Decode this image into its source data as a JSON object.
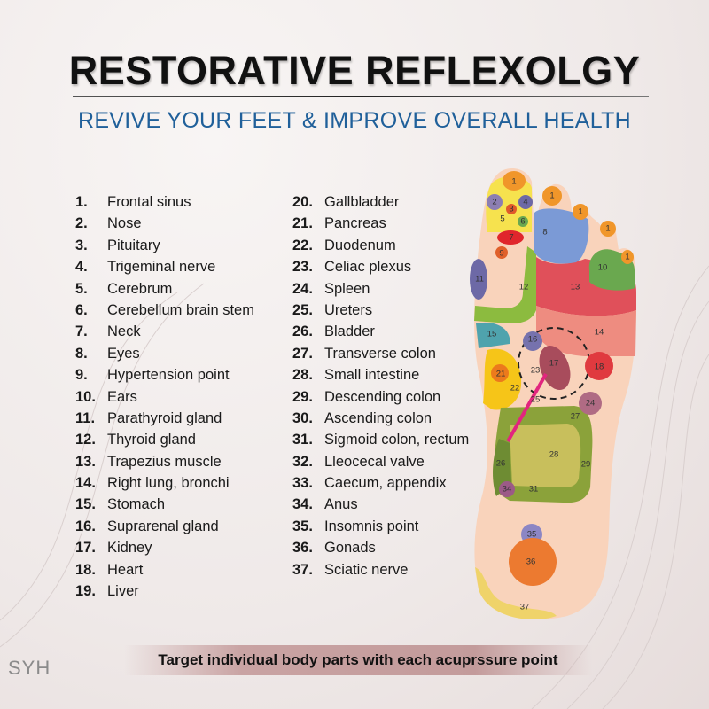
{
  "header": {
    "title": "RESTORATIVE REFLEXOLGY",
    "subtitle": "REVIVE YOUR FEET & IMPROVE OVERALL HEALTH"
  },
  "legend_left": [
    {
      "num": "1.",
      "label": "Frontal sinus"
    },
    {
      "num": "2.",
      "label": "Nose"
    },
    {
      "num": "3.",
      "label": "Pituitary"
    },
    {
      "num": "4.",
      "label": "Trigeminal nerve"
    },
    {
      "num": "5.",
      "label": "Cerebrum"
    },
    {
      "num": "6.",
      "label": "Cerebellum brain stem"
    },
    {
      "num": "7.",
      "label": "Neck"
    },
    {
      "num": "8.",
      "label": "Eyes"
    },
    {
      "num": "9.",
      "label": "Hypertension point"
    },
    {
      "num": "10.",
      "label": "Ears"
    },
    {
      "num": "11.",
      "label": "Parathyroid gland"
    },
    {
      "num": "12.",
      "label": "Thyroid gland"
    },
    {
      "num": "13.",
      "label": "Trapezius muscle"
    },
    {
      "num": "14.",
      "label": "Right lung, bronchi"
    },
    {
      "num": "15.",
      "label": "Stomach"
    },
    {
      "num": "16.",
      "label": "Suprarenal gland"
    },
    {
      "num": "17.",
      "label": "Kidney"
    },
    {
      "num": "18.",
      "label": "Heart"
    },
    {
      "num": "19.",
      "label": "Liver"
    }
  ],
  "legend_right": [
    {
      "num": "20.",
      "label": "Gallbladder"
    },
    {
      "num": "21.",
      "label": "Pancreas"
    },
    {
      "num": "22.",
      "label": "Duodenum"
    },
    {
      "num": "23.",
      "label": "Celiac plexus"
    },
    {
      "num": "24.",
      "label": "Spleen"
    },
    {
      "num": "25.",
      "label": "Ureters"
    },
    {
      "num": "26.",
      "label": "Bladder"
    },
    {
      "num": "27.",
      "label": "Transverse colon"
    },
    {
      "num": "28.",
      "label": "Small intestine"
    },
    {
      "num": "29.",
      "label": "Descending colon"
    },
    {
      "num": "30.",
      "label": "Ascending colon"
    },
    {
      "num": "31.",
      "label": "Sigmoid colon, rectum"
    },
    {
      "num": "32.",
      "label": "Lleocecal valve"
    },
    {
      "num": "33.",
      "label": "Caecum, appendix"
    },
    {
      "num": "34.",
      "label": "Anus"
    },
    {
      "num": "35.",
      "label": "Insomnis point"
    },
    {
      "num": "36.",
      "label": "Gonads"
    },
    {
      "num": "37.",
      "label": "Sciatic nerve"
    }
  ],
  "foot_labels": {
    "t1a": "1",
    "t1b": "1",
    "t1c": "1",
    "t1d": "1",
    "t1e": "1",
    "z2": "2",
    "z3": "3",
    "z4": "4",
    "z5": "5",
    "z6": "6",
    "z7": "7",
    "z8": "8",
    "z9": "9",
    "z10": "10",
    "z11": "11",
    "z12": "12",
    "z13": "13",
    "z14": "14",
    "z15": "15",
    "z16": "16",
    "z17": "17",
    "z18": "18",
    "z21": "21",
    "z22": "22",
    "z23": "23",
    "z24": "24",
    "z25": "25",
    "z26": "26",
    "z27": "27",
    "z28": "28",
    "z29": "29",
    "z31": "31",
    "z34": "34",
    "z35": "35",
    "z36": "36",
    "z37": "37"
  },
  "footer": {
    "banner": "Target individual body parts with each acuprssure point",
    "brand": "SYH"
  },
  "colors": {
    "title": "#111111",
    "subtitle": "#20609a",
    "skin": "#f9d3bb",
    "banner": "#c39b9b"
  }
}
